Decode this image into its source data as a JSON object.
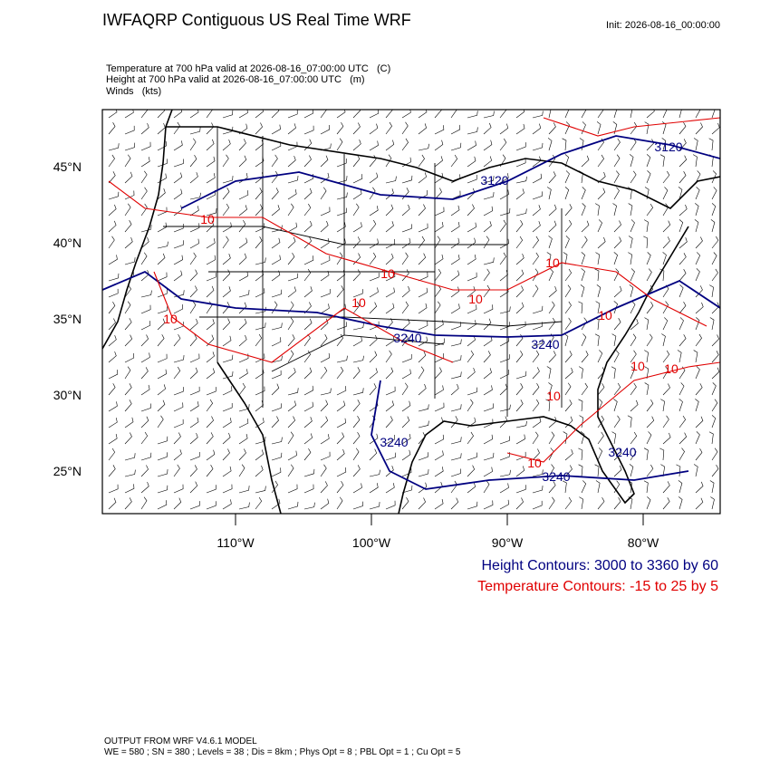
{
  "header": {
    "title": "IWFAQRP Contiguous US Real Time WRF",
    "init": "Init: 2026-08-16_00:00:00"
  },
  "fields": [
    "Temperature at 700 hPa valid at 2026-08-16_07:00:00 UTC   (C)",
    "Height at 700 hPa valid at 2026-08-16_07:00:00 UTC   (m)",
    "Winds   (kts)"
  ],
  "map": {
    "lat_labels": [
      "45°N",
      "40°N",
      "35°N",
      "30°N",
      "25°N"
    ],
    "lon_labels": [
      "110°W",
      "100°W",
      "90°W",
      "80°W"
    ],
    "height_labels": [
      "3120",
      "3120",
      "3240",
      "3240",
      "3240",
      "3240",
      "3240"
    ],
    "temperature_labels": [
      "10",
      "10",
      "10",
      "10",
      "10",
      "10",
      "10",
      "10",
      "10",
      "10",
      "10"
    ]
  },
  "legend": {
    "height": "Height Contours: 3000 to 3360 by 60",
    "temperature": "Temperature Contours: -15 to 25 by 5"
  },
  "footer": {
    "model": "OUTPUT FROM WRF V4.6.1 MODEL",
    "settings": "WE = 580 ; SN = 380 ; Levels = 38 ; Dis = 8km ; Phys Opt = 8 ; PBL Opt = 1 ; Cu Opt = 5"
  }
}
